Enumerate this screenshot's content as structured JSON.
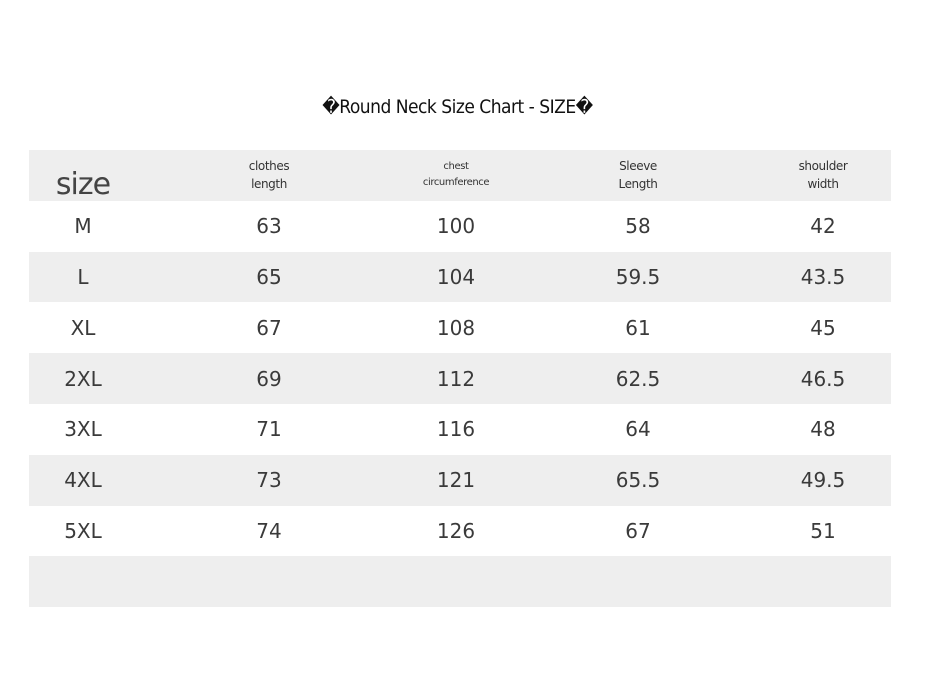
{
  "title": "�Round Neck Size Chart - SIZE�",
  "table": {
    "header": [
      "size",
      "clothes\nlength",
      "chest\ncircumference",
      "Sleeve\nLength",
      "shoulder\nwidth"
    ],
    "rows": [
      [
        "M",
        "63",
        "100",
        "58",
        "42"
      ],
      [
        "L",
        "65",
        "104",
        "59.5",
        "43.5"
      ],
      [
        "XL",
        "67",
        "108",
        "61",
        "45"
      ],
      [
        "2XL",
        "69",
        "112",
        "62.5",
        "46.5"
      ],
      [
        "3XL",
        "71",
        "116",
        "64",
        "48"
      ],
      [
        "4XL",
        "73",
        "121",
        "65.5",
        "49.5"
      ],
      [
        "5XL",
        "74",
        "126",
        "67",
        "51"
      ]
    ]
  }
}
